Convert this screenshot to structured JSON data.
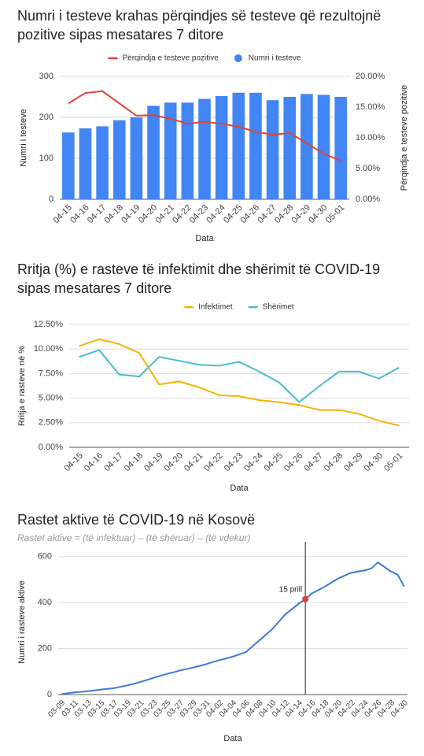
{
  "chart_data": [
    {
      "type": "combo",
      "title": "Numri i testeve krahas përqindjes së testeve që rezultojnë pozitive sipas mesatares 7 ditore",
      "categories": [
        "04-15",
        "04-16",
        "04-17",
        "04-18",
        "04-19",
        "04-20",
        "04-21",
        "04-22",
        "04-23",
        "04-24",
        "04-25",
        "04-26",
        "04-27",
        "04-28",
        "04-29",
        "04-30",
        "05-01"
      ],
      "series": [
        {
          "name": "Përqindja e testeve pozitive",
          "color": "#db4437",
          "type": "line",
          "axis": "y2",
          "values": [
            15.6,
            17.3,
            17.6,
            15.6,
            13.6,
            13.7,
            13.1,
            12.3,
            12.6,
            12.3,
            11.8,
            11.0,
            10.5,
            10.8,
            9.1,
            7.4,
            6.3
          ]
        },
        {
          "name": "Numri i testeve",
          "color": "#4285f4",
          "type": "bar",
          "values": [
            163,
            173,
            178,
            193,
            200,
            228,
            236,
            236,
            245,
            252,
            260,
            260,
            242,
            250,
            257,
            255,
            250
          ]
        }
      ],
      "ylim": [
        0,
        300
      ],
      "yticks": [
        0,
        100,
        200,
        300
      ],
      "y2lim": [
        0,
        20
      ],
      "y2ticks": [
        {
          "value": 0,
          "label": "0.00%"
        },
        {
          "value": 5,
          "label": "5.00%"
        },
        {
          "value": 10,
          "label": "10.00%"
        },
        {
          "value": 15,
          "label": "15.00%"
        },
        {
          "value": 20,
          "label": "20.00%"
        }
      ],
      "xlabel": "Data",
      "ylabel": "Numri i testeve",
      "y2label": "Përqindja e testeve pozitive",
      "legend": "top",
      "grid": true
    },
    {
      "type": "line",
      "title": "Rritja (%) e rasteve të infektimit dhe shërimit të COVID-19 sipas mesatares 7 ditore",
      "categories": [
        "04-15",
        "04-16",
        "04-17",
        "04-18",
        "04-19",
        "04-20",
        "04-21",
        "04-22",
        "04-23",
        "04-24",
        "04-25",
        "04-26",
        "04-27",
        "04-28",
        "04-29",
        "04-30",
        "05-01"
      ],
      "series": [
        {
          "name": "Infektimet",
          "color": "#f4b400",
          "values": [
            10.3,
            11.0,
            10.5,
            9.6,
            6.4,
            6.7,
            6.1,
            5.3,
            5.2,
            4.8,
            4.6,
            4.3,
            3.8,
            3.8,
            3.4,
            2.7,
            2.2
          ]
        },
        {
          "name": "Shërimet",
          "color": "#46bdc6",
          "values": [
            9.2,
            9.9,
            7.4,
            7.2,
            9.2,
            8.8,
            8.4,
            8.3,
            8.7,
            7.7,
            6.6,
            4.6,
            6.2,
            7.7,
            7.7,
            7.0,
            8.1
          ]
        }
      ],
      "ylim": [
        0,
        12.5
      ],
      "yticks": [
        {
          "value": 0,
          "label": "0.00%"
        },
        {
          "value": 2.5,
          "label": "2.50%"
        },
        {
          "value": 5,
          "label": "5.00%"
        },
        {
          "value": 7.5,
          "label": "7.50%"
        },
        {
          "value": 10,
          "label": "10.00%"
        },
        {
          "value": 12.5,
          "label": "12.50%"
        }
      ],
      "xlabel": "Data",
      "ylabel": "Rritja e rasteve në %",
      "legend": "top",
      "grid": true
    },
    {
      "type": "line",
      "title": "Rastet aktive të COVID-19 në Kosovë",
      "subtitle": "Rastet aktive = (të infektuar) – (të shëruar) – (të vdekur)",
      "categories": [
        "03-09",
        null,
        "03-11",
        null,
        "03-13",
        null,
        "03-15",
        null,
        "03-17",
        null,
        "03-19",
        null,
        "03-21",
        null,
        "03-23",
        null,
        "03-25",
        null,
        "03-27",
        null,
        "03-29",
        null,
        "03-31",
        null,
        "04-02",
        null,
        "04-04",
        null,
        "04-06",
        null,
        "04-08",
        null,
        "04-10",
        null,
        "04-12",
        null,
        "04-14",
        null,
        "04-16",
        null,
        "04-18",
        null,
        "04-20",
        null,
        "04-22",
        null,
        "04-24",
        null,
        "04-26",
        null,
        "04-28",
        null,
        "04-30"
      ],
      "values": [
        2,
        6,
        10,
        12,
        15,
        18,
        22,
        25,
        28,
        34,
        40,
        47,
        55,
        64,
        73,
        82,
        90,
        97,
        105,
        111,
        118,
        125,
        133,
        142,
        150,
        157,
        165,
        175,
        185,
        210,
        235,
        260,
        285,
        318,
        350,
        372,
        395,
        415,
        440,
        455,
        470,
        488,
        505,
        518,
        530,
        535,
        540,
        548,
        575,
        555,
        535,
        522,
        470
      ],
      "color": "#3c78d8",
      "annotation": {
        "text": "15 prill",
        "point": 37
      },
      "ylim": [
        0,
        630
      ],
      "yticks": [
        0,
        200,
        400,
        600
      ],
      "xlabel": "Data",
      "ylabel": "Numri i rasteve aktive",
      "grid": true
    }
  ]
}
